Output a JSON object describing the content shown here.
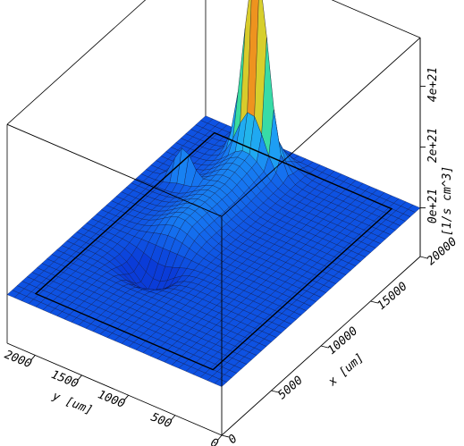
{
  "chart_data": {
    "type": "surface",
    "x_axis": {
      "label": "x [um]",
      "ticks": [
        0,
        5000,
        10000,
        15000,
        20000
      ],
      "tick_labels": [
        "0",
        "5000",
        "10000",
        "15000",
        "20000"
      ],
      "range": [
        0,
        20000
      ]
    },
    "y_axis": {
      "label": "y [um]",
      "ticks": [
        0,
        500,
        1000,
        1500,
        2000
      ],
      "tick_labels": [
        "0",
        "500",
        "1000",
        "1500",
        "2000"
      ],
      "range": [
        0,
        2300
      ]
    },
    "z_axis": {
      "label": "[1/s cm^3]",
      "ticks": [
        0,
        2e+21,
        4e+21
      ],
      "tick_labels": [
        "0e+21",
        "2e+21",
        "4e+21"
      ],
      "range": [
        -1.6e+21,
        5.6e+21
      ]
    },
    "colormap": [
      "#0a3cd8",
      "#1572f0",
      "#1ea4f5",
      "#2ad6d8",
      "#48e070",
      "#cde030",
      "#f0a020",
      "#e02818"
    ],
    "surface_features": [
      {
        "kind": "peak",
        "x": 17500,
        "y": 1500,
        "z": 4.6e+21
      },
      {
        "kind": "peak",
        "x": 14000,
        "y": 1900,
        "z": 1.3e+21
      },
      {
        "kind": "ridge",
        "x_start": 8500,
        "x_end": 18500,
        "y": 1500,
        "z": 8e+20
      },
      {
        "kind": "trough",
        "x": 7000,
        "y": 1500,
        "z": -9e+20
      }
    ],
    "grid": true,
    "bounding_box": true
  }
}
